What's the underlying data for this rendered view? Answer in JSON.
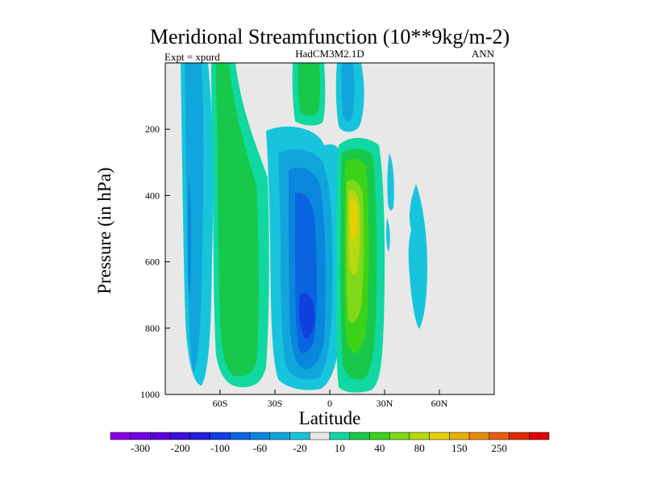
{
  "chart_data": {
    "type": "heatmap",
    "title": "Meridional Streamfunction (10**9kg/m-2)",
    "left_label": "Expt = xpurd",
    "center_label": "HadCM3M2.1D",
    "right_label": "ANN",
    "xlabel": "Latitude",
    "ylabel": "Pressure (in hPa)",
    "xlim": [
      -90,
      90
    ],
    "ylim": [
      1000,
      0
    ],
    "x_ticks": [
      {
        "value": -60,
        "label": "60S"
      },
      {
        "value": -30,
        "label": "30S"
      },
      {
        "value": 0,
        "label": "0"
      },
      {
        "value": 30,
        "label": "30N"
      },
      {
        "value": 60,
        "label": "60N"
      }
    ],
    "y_ticks": [
      {
        "value": 200,
        "label": "200"
      },
      {
        "value": 400,
        "label": "400"
      },
      {
        "value": 600,
        "label": "600"
      },
      {
        "value": 800,
        "label": "800"
      },
      {
        "value": 1000,
        "label": "1000"
      }
    ],
    "colorbar": {
      "colors": [
        "#8a00e6",
        "#7000e0",
        "#5a00d8",
        "#3c10d8",
        "#2020d8",
        "#1040e0",
        "#0a64e0",
        "#0a86dc",
        "#10a6dc",
        "#18c4dc",
        "#e8e8e8",
        "#10d8a0",
        "#18c84a",
        "#3cd218",
        "#80d818",
        "#b8d810",
        "#e6d00a",
        "#e8b008",
        "#e88a0a",
        "#e85c0c",
        "#e02a0a",
        "#d8000a"
      ],
      "tick_labels": [
        "-300",
        "-200",
        "-100",
        "-60",
        "-20",
        "10",
        "40",
        "80",
        "150",
        "250"
      ],
      "tick_boundaries": [
        1,
        3,
        5,
        7,
        9,
        11,
        13,
        15,
        17,
        19
      ]
    },
    "regions": [
      {
        "name": "sh-polar-negative",
        "level": -30,
        "lat_range": [
          -80,
          -62
        ],
        "p_range": [
          0,
          1000
        ]
      },
      {
        "name": "sh-ferrel-positive",
        "level": 20,
        "lat_range": [
          -60,
          -35
        ],
        "p_range": [
          0,
          1000
        ]
      },
      {
        "name": "sh-hadley-negative",
        "level": -70,
        "lat_range": [
          -28,
          2
        ],
        "p_range": [
          200,
          1000
        ]
      },
      {
        "name": "sh-hadley-core",
        "level": -110,
        "lat_range": [
          -14,
          -8
        ],
        "p_range": [
          700,
          820
        ]
      },
      {
        "name": "nh-hadley-positive",
        "level": 60,
        "lat_range": [
          4,
          24
        ],
        "p_range": [
          200,
          1000
        ]
      },
      {
        "name": "nh-hadley-core",
        "level": 110,
        "lat_range": [
          8,
          12
        ],
        "p_range": [
          380,
          520
        ]
      },
      {
        "name": "strat-positive",
        "level": 20,
        "lat_range": [
          -18,
          -10
        ],
        "p_range": [
          0,
          150
        ]
      },
      {
        "name": "strat-negative",
        "level": -20,
        "lat_range": [
          5,
          18
        ],
        "p_range": [
          0,
          180
        ]
      },
      {
        "name": "nh-midlat-negative",
        "level": -10,
        "lat_range": [
          43,
          55
        ],
        "p_range": [
          400,
          800
        ]
      }
    ]
  }
}
